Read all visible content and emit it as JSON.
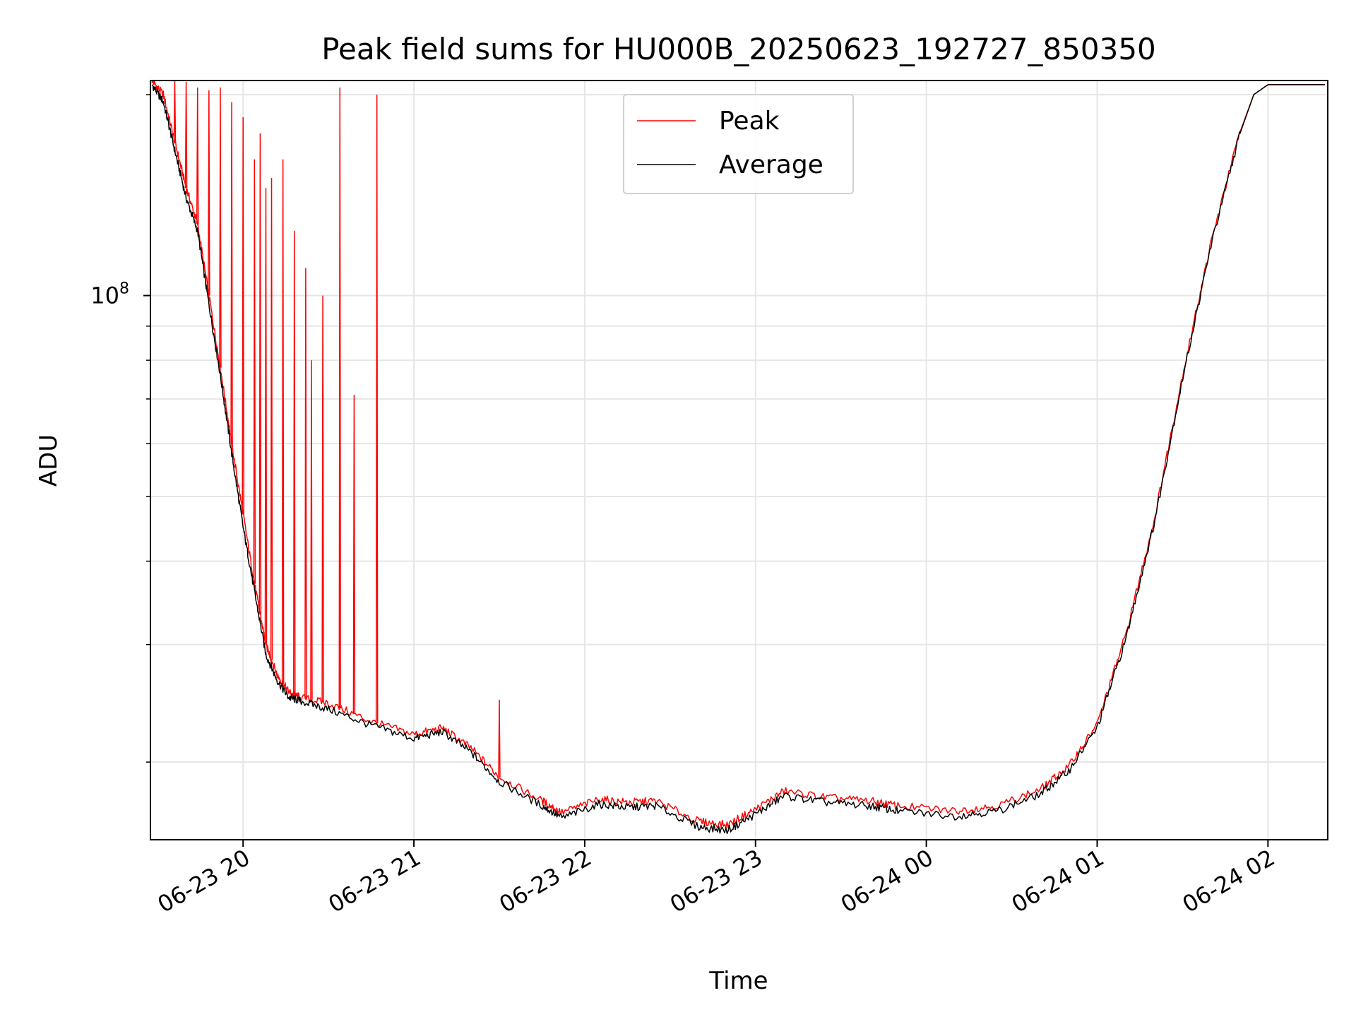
{
  "chart_data": {
    "type": "line",
    "title": "Peak field sums for HU000B_20250623_192727_850350",
    "xlabel": "Time",
    "ylabel": "ADU",
    "y_scale": "log",
    "xlim": [
      "2025-06-23 19:27:27",
      "2025-06-24 02:21:00"
    ],
    "ylim": [
      15300000,
      210000000
    ],
    "grid": true,
    "legend_position": "upper center",
    "x_ticks": [
      "06-23 20",
      "06-23 21",
      "06-23 22",
      "06-23 23",
      "06-24 00",
      "06-24 01",
      "06-24 02"
    ],
    "x_tick_times": [
      "2025-06-23 20:00",
      "2025-06-23 21:00",
      "2025-06-23 22:00",
      "2025-06-23 23:00",
      "2025-06-24 00:00",
      "2025-06-24 01:00",
      "2025-06-24 02:00"
    ],
    "y_tick_label": "10",
    "y_tick_exponent": "8",
    "y_tick_value": 100000000,
    "series": [
      {
        "name": "Peak",
        "color": "#ff0000",
        "x": [
          "2025-06-23 19:28",
          "2025-06-23 19:32",
          "2025-06-23 19:36",
          "2025-06-23 19:40",
          "2025-06-23 19:44",
          "2025-06-23 19:48",
          "2025-06-23 19:52",
          "2025-06-23 19:56",
          "2025-06-23 20:00",
          "2025-06-23 20:04",
          "2025-06-23 20:08",
          "2025-06-23 20:12",
          "2025-06-23 20:16",
          "2025-06-23 20:20",
          "2025-06-23 20:30",
          "2025-06-23 20:45",
          "2025-06-23 21:00",
          "2025-06-23 21:10",
          "2025-06-23 21:20",
          "2025-06-23 21:30",
          "2025-06-23 21:45",
          "2025-06-23 21:52",
          "2025-06-23 22:05",
          "2025-06-23 22:15",
          "2025-06-23 22:25",
          "2025-06-23 22:40",
          "2025-06-23 22:50",
          "2025-06-23 23:00",
          "2025-06-23 23:10",
          "2025-06-23 23:25",
          "2025-06-23 23:40",
          "2025-06-23 23:50",
          "2025-06-24 00:10",
          "2025-06-24 00:25",
          "2025-06-24 00:40",
          "2025-06-24 00:50",
          "2025-06-24 01:00",
          "2025-06-24 01:10",
          "2025-06-24 01:20",
          "2025-06-24 01:30",
          "2025-06-24 01:40",
          "2025-06-24 01:50",
          "2025-06-24 01:55",
          "2025-06-24 02:00",
          "2025-06-24 02:20"
        ],
        "y": [
          210000000,
          200000000,
          170000000,
          145000000,
          128000000,
          100000000,
          78000000,
          60000000,
          47000000,
          37000000,
          30000000,
          27000000,
          25500000,
          25000000,
          24500000,
          23000000,
          22000000,
          22500000,
          21000000,
          19000000,
          17500000,
          16800000,
          17600000,
          17400000,
          17500000,
          16300000,
          16100000,
          17000000,
          18100000,
          17700000,
          17500000,
          17200000,
          16900000,
          17200000,
          18200000,
          19700000,
          22800000,
          31000000,
          46000000,
          76000000,
          120000000,
          175000000,
          200000000,
          207000000,
          207000000
        ],
        "spikes": [
          {
            "x": "2025-06-23 19:36",
            "y": 210000000
          },
          {
            "x": "2025-06-23 19:40",
            "y": 209000000
          },
          {
            "x": "2025-06-23 19:44",
            "y": 205000000
          },
          {
            "x": "2025-06-23 19:48",
            "y": 203000000
          },
          {
            "x": "2025-06-23 19:52",
            "y": 205000000
          },
          {
            "x": "2025-06-23 19:56",
            "y": 195000000
          },
          {
            "x": "2025-06-23 20:00",
            "y": 185000000
          },
          {
            "x": "2025-06-23 20:04",
            "y": 160000000
          },
          {
            "x": "2025-06-23 20:06",
            "y": 175000000
          },
          {
            "x": "2025-06-23 20:08",
            "y": 145000000
          },
          {
            "x": "2025-06-23 20:10",
            "y": 150000000
          },
          {
            "x": "2025-06-23 20:14",
            "y": 160000000
          },
          {
            "x": "2025-06-23 20:18",
            "y": 125000000
          },
          {
            "x": "2025-06-23 20:22",
            "y": 110000000
          },
          {
            "x": "2025-06-23 20:24",
            "y": 80000000
          },
          {
            "x": "2025-06-23 20:28",
            "y": 100000000
          },
          {
            "x": "2025-06-23 20:34",
            "y": 205000000
          },
          {
            "x": "2025-06-23 20:39",
            "y": 71000000
          },
          {
            "x": "2025-06-23 20:47",
            "y": 200000000
          },
          {
            "x": "2025-06-23 21:30",
            "y": 24800000
          }
        ]
      },
      {
        "name": "Average",
        "color": "#000000",
        "x": [
          "2025-06-23 19:28",
          "2025-06-23 19:32",
          "2025-06-23 19:36",
          "2025-06-23 19:40",
          "2025-06-23 19:44",
          "2025-06-23 19:48",
          "2025-06-23 19:52",
          "2025-06-23 19:56",
          "2025-06-23 20:00",
          "2025-06-23 20:04",
          "2025-06-23 20:08",
          "2025-06-23 20:12",
          "2025-06-23 20:16",
          "2025-06-23 20:20",
          "2025-06-23 20:30",
          "2025-06-23 20:45",
          "2025-06-23 21:00",
          "2025-06-23 21:10",
          "2025-06-23 21:20",
          "2025-06-23 21:30",
          "2025-06-23 21:45",
          "2025-06-23 21:52",
          "2025-06-23 22:05",
          "2025-06-23 22:15",
          "2025-06-23 22:25",
          "2025-06-23 22:40",
          "2025-06-23 22:50",
          "2025-06-23 23:00",
          "2025-06-23 23:10",
          "2025-06-23 23:25",
          "2025-06-23 23:40",
          "2025-06-23 23:50",
          "2025-06-24 00:10",
          "2025-06-24 00:25",
          "2025-06-24 00:40",
          "2025-06-24 00:50",
          "2025-06-24 01:00",
          "2025-06-24 01:10",
          "2025-06-24 01:20",
          "2025-06-24 01:30",
          "2025-06-24 01:40",
          "2025-06-24 01:50",
          "2025-06-24 01:55",
          "2025-06-24 02:00",
          "2025-06-24 02:20"
        ],
        "y": [
          207000000,
          195000000,
          165000000,
          140000000,
          125000000,
          97000000,
          76000000,
          58000000,
          45000000,
          36000000,
          29000000,
          26500000,
          25000000,
          24700000,
          24000000,
          22700000,
          21700000,
          22200000,
          20700000,
          18700000,
          17200000,
          16500000,
          17300000,
          17100000,
          17200000,
          16000000,
          15800000,
          16700000,
          17800000,
          17400000,
          17200000,
          16900000,
          16600000,
          16900000,
          17900000,
          19400000,
          22500000,
          30500000,
          45500000,
          75000000,
          119000000,
          174000000,
          200000000,
          207000000,
          207000000
        ]
      }
    ]
  }
}
